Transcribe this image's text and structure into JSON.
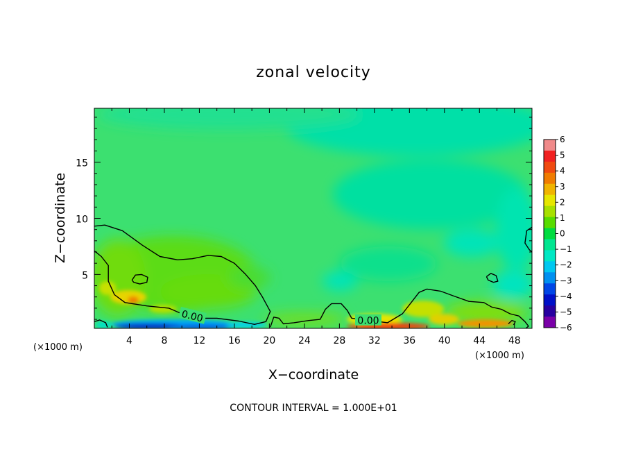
{
  "chart_data": {
    "type": "heatmap",
    "title": "zonal velocity",
    "xlabel": "X−coordinate",
    "ylabel": "Z−coordinate",
    "x_unit_left": "(×1000 m)",
    "x_unit_right": "(×1000 m)",
    "xlim": [
      0,
      50
    ],
    "ylim": [
      0.2,
      19.8
    ],
    "x_ticks": [
      4,
      8,
      12,
      16,
      20,
      24,
      28,
      32,
      36,
      40,
      44,
      48
    ],
    "x_tick_labels": [
      "4",
      "8",
      "12",
      "16",
      "20",
      "24",
      "28",
      "32",
      "36",
      "40",
      "44",
      "48"
    ],
    "y_ticks": [
      5,
      10,
      15
    ],
    "y_tick_labels": [
      "5",
      "10",
      "15"
    ],
    "contour_note": "CONTOUR INTERVAL = 1.000E+01",
    "contour_labels": [
      {
        "text": "0.00",
        "x": 11.2,
        "z": 1.3,
        "angle": 14
      },
      {
        "text": "0.00",
        "x": 31.3,
        "z": 0.9,
        "angle": 0
      }
    ],
    "colorbar": {
      "ticks": [
        6,
        5,
        4,
        3,
        2,
        1,
        0,
        -1,
        -2,
        -3,
        -4,
        -5,
        -6
      ],
      "tick_labels": [
        "6",
        "5",
        "4",
        "3",
        "2",
        "1",
        "0",
        "−1",
        "−2",
        "−3",
        "−4",
        "−5",
        "−6"
      ],
      "colors": [
        "#f08a8a",
        "#f02020",
        "#f04a10",
        "#f07c00",
        "#f0b400",
        "#e6e600",
        "#a8e000",
        "#58dc00",
        "#00dc40",
        "#00e690",
        "#00e8c4",
        "#00c8f0",
        "#0090f0",
        "#0046e6",
        "#0010c8",
        "#2800a0",
        "#7a00a8"
      ]
    },
    "zero_contours": [
      [
        [
          0,
          9.3
        ],
        [
          1.2,
          9.4
        ],
        [
          3.2,
          8.9
        ],
        [
          5.5,
          7.6
        ],
        [
          7.5,
          6.6
        ],
        [
          9.5,
          6.3
        ],
        [
          11.2,
          6.4
        ],
        [
          13,
          6.7
        ],
        [
          14.5,
          6.6
        ],
        [
          16,
          6.0
        ],
        [
          17.3,
          5.0
        ],
        [
          18.4,
          4.0
        ],
        [
          19.2,
          3.0
        ],
        [
          20.1,
          1.7
        ],
        [
          19.6,
          0.8
        ],
        [
          18.3,
          0.55
        ],
        [
          16.5,
          0.85
        ],
        [
          14,
          1.1
        ],
        [
          12,
          1.1
        ],
        [
          10,
          1.5
        ],
        [
          8.5,
          2.0
        ],
        [
          6,
          2.2
        ],
        [
          3.5,
          2.5
        ],
        [
          2.3,
          3.2
        ],
        [
          1.6,
          4.4
        ],
        [
          1.6,
          5.8
        ],
        [
          0.8,
          6.6
        ],
        [
          0,
          7.1
        ]
      ],
      [
        [
          0,
          0.8
        ],
        [
          0.6,
          0.95
        ],
        [
          1.3,
          0.7
        ],
        [
          1.5,
          0.3
        ]
      ],
      [
        [
          4.3,
          4.5
        ],
        [
          4.7,
          4.95
        ],
        [
          5.4,
          5.0
        ],
        [
          6.1,
          4.75
        ],
        [
          6.0,
          4.3
        ],
        [
          5.2,
          4.15
        ],
        [
          4.5,
          4.3
        ],
        [
          4.3,
          4.5
        ]
      ],
      [
        [
          20.1,
          0.3
        ],
        [
          20.5,
          1.2
        ],
        [
          21.1,
          1.1
        ],
        [
          21.6,
          0.6
        ],
        [
          22.8,
          0.7
        ],
        [
          24.5,
          0.9
        ],
        [
          25.8,
          1.0
        ],
        [
          26.4,
          1.9
        ],
        [
          27.1,
          2.4
        ],
        [
          28.2,
          2.4
        ],
        [
          28.9,
          1.8
        ],
        [
          29.4,
          1.1
        ],
        [
          31.5,
          0.9
        ],
        [
          33.5,
          0.7
        ],
        [
          35.2,
          1.5
        ],
        [
          36.3,
          2.6
        ],
        [
          37.1,
          3.4
        ],
        [
          38,
          3.7
        ],
        [
          39.6,
          3.5
        ],
        [
          41,
          3.1
        ],
        [
          42.8,
          2.6
        ],
        [
          44.5,
          2.5
        ],
        [
          45.4,
          2.1
        ],
        [
          46.5,
          1.9
        ],
        [
          47.5,
          1.5
        ],
        [
          48.5,
          1.3
        ],
        [
          49.2,
          0.8
        ],
        [
          49.6,
          0.4
        ],
        [
          49.3,
          0.2
        ]
      ],
      [
        [
          44.8,
          4.8
        ],
        [
          45.3,
          5.1
        ],
        [
          45.9,
          4.9
        ],
        [
          46.1,
          4.4
        ],
        [
          45.6,
          4.3
        ],
        [
          45.0,
          4.5
        ],
        [
          44.8,
          4.8
        ]
      ],
      [
        [
          50,
          9.2
        ],
        [
          49.4,
          8.9
        ],
        [
          49.2,
          7.8
        ],
        [
          49.7,
          7.2
        ],
        [
          50,
          7.0
        ]
      ],
      [
        [
          47.3,
          0.6
        ],
        [
          47.7,
          0.9
        ],
        [
          48.1,
          0.8
        ],
        [
          47.9,
          0.5
        ]
      ]
    ]
  }
}
